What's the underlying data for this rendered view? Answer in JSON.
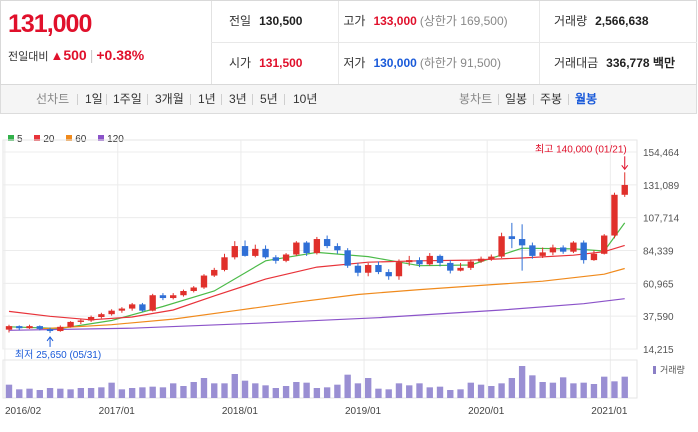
{
  "price": {
    "current": "131,000",
    "change_label": "전일대비",
    "change_arrow": "▲",
    "change_amount": "500",
    "change_pct": "+0.38%"
  },
  "stats": {
    "prev_close": {
      "label": "전일",
      "value": "130,500"
    },
    "high": {
      "label": "고가",
      "value": "133,000",
      "sub": "(상한가 169,500)"
    },
    "volume": {
      "label": "거래량",
      "value": "2,566,638"
    },
    "open": {
      "label": "시가",
      "value": "131,500"
    },
    "low": {
      "label": "저가",
      "value": "130,000",
      "sub": "(하한가 91,500)"
    },
    "amount": {
      "label": "거래대금",
      "value": "336,778",
      "unit": "백만"
    }
  },
  "toolbar": {
    "line_label": "선차트",
    "line_periods": [
      "1일",
      "1주일",
      "3개월",
      "1년",
      "3년",
      "5년",
      "10년"
    ],
    "candle_label": "봉차트",
    "candle_periods": [
      "일봉",
      "주봉",
      "월봉"
    ],
    "candle_selected": "월봉"
  },
  "legend": [
    {
      "label": "5",
      "color": "#32b14a"
    },
    {
      "label": "20",
      "color": "#e8333a"
    },
    {
      "label": "60",
      "color": "#f08a1c"
    },
    {
      "label": "120",
      "color": "#8b53c9"
    }
  ],
  "chart_data": {
    "type": "candlestick",
    "period": "monthly",
    "yticks": [
      154464,
      131089,
      107714,
      84339,
      60965,
      37590,
      14215
    ],
    "ylim": [
      14215,
      154464
    ],
    "xticks": [
      "2016/02",
      "2017/01",
      "2018/01",
      "2019/01",
      "2020/01",
      "2021/01"
    ],
    "xtick_index": [
      0,
      11,
      23,
      35,
      47,
      59
    ],
    "candles": [
      {
        "o": 28000,
        "c": 30500,
        "h": 31500,
        "l": 26000
      },
      {
        "o": 30500,
        "c": 29000,
        "h": 31000,
        "l": 27500
      },
      {
        "o": 29000,
        "c": 30500,
        "h": 31500,
        "l": 28500
      },
      {
        "o": 30500,
        "c": 28500,
        "h": 31000,
        "l": 27500
      },
      {
        "o": 28500,
        "c": 27000,
        "h": 29500,
        "l": 25650
      },
      {
        "o": 27000,
        "c": 30000,
        "h": 31000,
        "l": 26500
      },
      {
        "o": 30000,
        "c": 33500,
        "h": 34000,
        "l": 29500
      },
      {
        "o": 33500,
        "c": 34500,
        "h": 35500,
        "l": 32000
      },
      {
        "o": 34500,
        "c": 37000,
        "h": 38000,
        "l": 33500
      },
      {
        "o": 37000,
        "c": 39000,
        "h": 40000,
        "l": 36000
      },
      {
        "o": 39000,
        "c": 41500,
        "h": 42500,
        "l": 38000
      },
      {
        "o": 41500,
        "c": 43000,
        "h": 44000,
        "l": 40000
      },
      {
        "o": 43000,
        "c": 46000,
        "h": 47000,
        "l": 41500
      },
      {
        "o": 46000,
        "c": 41500,
        "h": 47000,
        "l": 40500
      },
      {
        "o": 41500,
        "c": 52500,
        "h": 53500,
        "l": 41000
      },
      {
        "o": 52500,
        "c": 50500,
        "h": 54000,
        "l": 49000
      },
      {
        "o": 50500,
        "c": 52500,
        "h": 54000,
        "l": 49500
      },
      {
        "o": 52500,
        "c": 55500,
        "h": 56500,
        "l": 51500
      },
      {
        "o": 55500,
        "c": 58000,
        "h": 59000,
        "l": 54500
      },
      {
        "o": 58000,
        "c": 66500,
        "h": 67500,
        "l": 57000
      },
      {
        "o": 66500,
        "c": 70500,
        "h": 72000,
        "l": 65500
      },
      {
        "o": 70500,
        "c": 79500,
        "h": 82000,
        "l": 69500
      },
      {
        "o": 79500,
        "c": 87500,
        "h": 91000,
        "l": 78000
      },
      {
        "o": 87500,
        "c": 80500,
        "h": 91500,
        "l": 80000
      },
      {
        "o": 80500,
        "c": 85500,
        "h": 88500,
        "l": 79500
      },
      {
        "o": 85500,
        "c": 79500,
        "h": 88000,
        "l": 78500
      },
      {
        "o": 79500,
        "c": 77000,
        "h": 81000,
        "l": 75000
      },
      {
        "o": 77000,
        "c": 81500,
        "h": 82500,
        "l": 76000
      },
      {
        "o": 81500,
        "c": 90000,
        "h": 91000,
        "l": 80500
      },
      {
        "o": 90000,
        "c": 82500,
        "h": 91000,
        "l": 80500
      },
      {
        "o": 82500,
        "c": 92500,
        "h": 94000,
        "l": 81500
      },
      {
        "o": 92500,
        "c": 87500,
        "h": 95000,
        "l": 86000
      },
      {
        "o": 87500,
        "c": 84500,
        "h": 89500,
        "l": 82000
      },
      {
        "o": 84500,
        "c": 73500,
        "h": 86000,
        "l": 72000
      },
      {
        "o": 73500,
        "c": 68500,
        "h": 75500,
        "l": 66000
      },
      {
        "o": 68500,
        "c": 74000,
        "h": 75500,
        "l": 66000
      },
      {
        "o": 74000,
        "c": 69000,
        "h": 76500,
        "l": 67500
      },
      {
        "o": 69000,
        "c": 66000,
        "h": 71000,
        "l": 63500
      },
      {
        "o": 66000,
        "c": 76000,
        "h": 78000,
        "l": 63500
      },
      {
        "o": 76000,
        "c": 77500,
        "h": 80500,
        "l": 73500
      },
      {
        "o": 77500,
        "c": 74500,
        "h": 79500,
        "l": 72500
      },
      {
        "o": 74500,
        "c": 80500,
        "h": 82500,
        "l": 73500
      },
      {
        "o": 80500,
        "c": 75500,
        "h": 81500,
        "l": 73000
      },
      {
        "o": 75500,
        "c": 70000,
        "h": 77500,
        "l": 68000
      },
      {
        "o": 70000,
        "c": 72000,
        "h": 75500,
        "l": 69500
      },
      {
        "o": 72000,
        "c": 76500,
        "h": 78000,
        "l": 70500
      },
      {
        "o": 76500,
        "c": 78500,
        "h": 80000,
        "l": 75500
      },
      {
        "o": 78500,
        "c": 80000,
        "h": 81500,
        "l": 77000
      },
      {
        "o": 80000,
        "c": 94500,
        "h": 97000,
        "l": 79000
      },
      {
        "o": 94500,
        "c": 92500,
        "h": 104000,
        "l": 86000
      },
      {
        "o": 92500,
        "c": 88000,
        "h": 103000,
        "l": 70000
      },
      {
        "o": 88000,
        "c": 80500,
        "h": 90000,
        "l": 78500
      },
      {
        "o": 80500,
        "c": 83000,
        "h": 86500,
        "l": 79000
      },
      {
        "o": 83000,
        "c": 86500,
        "h": 88500,
        "l": 81000
      },
      {
        "o": 86500,
        "c": 83500,
        "h": 88000,
        "l": 82000
      },
      {
        "o": 83500,
        "c": 90000,
        "h": 91000,
        "l": 82500
      },
      {
        "o": 90000,
        "c": 77500,
        "h": 91500,
        "l": 75000
      },
      {
        "o": 77500,
        "c": 82000,
        "h": 84500,
        "l": 77000
      },
      {
        "o": 82000,
        "c": 95000,
        "h": 96000,
        "l": 81500
      },
      {
        "o": 95000,
        "c": 124000,
        "h": 125500,
        "l": 93000
      },
      {
        "o": 124000,
        "c": 131000,
        "h": 140000,
        "l": 122500
      }
    ],
    "ma": {
      "ma5": [
        [
          0,
          30000
        ],
        [
          5,
          28800
        ],
        [
          10,
          34500
        ],
        [
          15,
          44500
        ],
        [
          20,
          55500
        ],
        [
          25,
          77000
        ],
        [
          30,
          83000
        ],
        [
          35,
          80000
        ],
        [
          40,
          73500
        ],
        [
          45,
          74000
        ],
        [
          50,
          86000
        ],
        [
          55,
          85500
        ],
        [
          58,
          84000
        ],
        [
          60,
          104000
        ]
      ],
      "ma20": [
        [
          0,
          41000
        ],
        [
          4,
          37500
        ],
        [
          8,
          35000
        ],
        [
          12,
          37000
        ],
        [
          16,
          42000
        ],
        [
          20,
          52000
        ],
        [
          25,
          64000
        ],
        [
          30,
          72500
        ],
        [
          35,
          76000
        ],
        [
          40,
          77000
        ],
        [
          45,
          77500
        ],
        [
          50,
          79000
        ],
        [
          55,
          81000
        ],
        [
          58,
          83500
        ],
        [
          60,
          88000
        ]
      ],
      "ma60": [
        [
          3,
          28500
        ],
        [
          10,
          31500
        ],
        [
          16,
          35500
        ],
        [
          22,
          41500
        ],
        [
          28,
          47500
        ],
        [
          34,
          53000
        ],
        [
          40,
          56500
        ],
        [
          46,
          59500
        ],
        [
          52,
          62500
        ],
        [
          58,
          67500
        ],
        [
          60,
          71500
        ]
      ],
      "ma120": [
        [
          0,
          27500
        ],
        [
          12,
          29000
        ],
        [
          24,
          32500
        ],
        [
          36,
          36500
        ],
        [
          48,
          42000
        ],
        [
          56,
          46500
        ],
        [
          60,
          50000
        ]
      ]
    },
    "annotations": {
      "high": "최고 140,000 (01/21)",
      "low": "최저 25,650 (05/31)"
    },
    "volume_label": "거래량",
    "volume": [
      20,
      13,
      14,
      12,
      15,
      14,
      13,
      15,
      15,
      16,
      23,
      13,
      15,
      16,
      17,
      16,
      22,
      18,
      24,
      30,
      22,
      22,
      36,
      26,
      22,
      19,
      15,
      18,
      24,
      23,
      15,
      16,
      20,
      35,
      22,
      30,
      14,
      13,
      22,
      19,
      22,
      16,
      17,
      12,
      13,
      23,
      20,
      18,
      22,
      30,
      48,
      34,
      24,
      23,
      31,
      22,
      23,
      21,
      32,
      25,
      32
    ]
  }
}
